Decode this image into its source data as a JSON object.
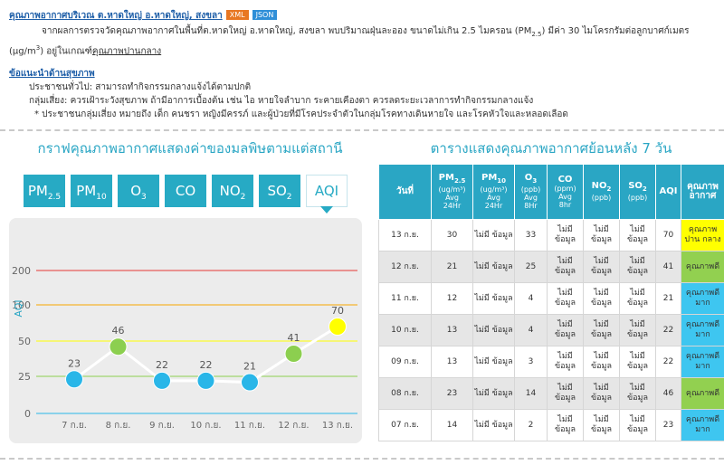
{
  "header": {
    "title": "คุณภาพอากาศบริเวณ ต.หาดใหญ่ อ.หาดใหญ่, สงขลา",
    "xml_label": "XML",
    "json_label": "JSON",
    "text_before": "จากผลการตรวจวัดคุณภาพอากาศในพื้นที่ต.หาดใหญ่ อ.หาดใหญ่, สงขลา พบปริมาณฝุ่นละออง ขนาดไม่เกิน 2.5 ไมครอน (PM",
    "pm_sub": "2.5",
    "text_mid": ") มีค่า 30 ไมโครกรัมต่อลูกบาศก์เมตร (µg/m",
    "unit_sup": "3",
    "text_after": ") อยู่ในเกณฑ์",
    "quality_link": "คุณภาพปานกลาง"
  },
  "advice": {
    "heading": "ข้อแนะนำด้านสุขภาพ",
    "general": "ประชาชนทั่วไป: สามารถทำกิจกรรมกลางแจ้งได้ตามปกติ",
    "risk": "กลุ่มเสี่ยง: ควรเฝ้าระวังสุขภาพ ถ้ามีอาการเบื้องต้น เช่น ไอ หายใจลำบาก ระคายเคืองตา ควรลดระยะเวลาการทำกิจกรรมกลางแจ้ง",
    "note": "* ประชาชนกลุ่มเสี่ยง หมายถึง เด็ก คนชรา หญิงมีครรภ์ และผู้ป่วยที่มีโรคประจำตัวในกลุ่มโรคทางเดินหายใจ และโรคหัวใจและหลอดเลือด"
  },
  "left_panel": {
    "title": "กราฟคุณภาพอากาศแสดงค่าของมลพิษตามแต่สถานี",
    "tabs": [
      {
        "base": "PM",
        "sub": "2.5",
        "active": false
      },
      {
        "base": "PM",
        "sub": "10",
        "active": false
      },
      {
        "base": "O",
        "sub": "3",
        "active": false
      },
      {
        "base": "CO",
        "sub": "",
        "active": false
      },
      {
        "base": "NO",
        "sub": "2",
        "active": false
      },
      {
        "base": "SO",
        "sub": "2",
        "active": false
      },
      {
        "base": "AQI",
        "sub": "",
        "active": true
      }
    ]
  },
  "chart_data": {
    "type": "line",
    "ylabel": "AQI",
    "xlabel": "",
    "y_ticks": [
      0,
      25,
      50,
      100,
      200
    ],
    "y_scale": "piecewise",
    "categories": [
      "7 ก.ย.",
      "8 ก.ย.",
      "9 ก.ย.",
      "10 ก.ย.",
      "11 ก.ย.",
      "12 ก.ย.",
      "13 ก.ย."
    ],
    "values": [
      23,
      46,
      22,
      22,
      21,
      41,
      70
    ],
    "point_colors": [
      "#29b6e8",
      "#8ccf4f",
      "#29b6e8",
      "#29b6e8",
      "#29b6e8",
      "#8ccf4f",
      "#ffff00"
    ],
    "band_colors": {
      "0": "#29b6e8",
      "25": "#8ccf4f",
      "50": "#ffff00",
      "100": "#f7a600",
      "200": "#e53935"
    },
    "grid": true,
    "legend": "none"
  },
  "right_panel": {
    "title": "ตารางแสดงคุณภาพอากาศย้อนหลัง 7 วัน",
    "headers": {
      "date": "วันที่",
      "pm25": {
        "base": "PM",
        "sub": "2.5",
        "unit": "(ug/m³)",
        "avg": "Avg",
        "period": "24Hr"
      },
      "pm10": {
        "base": "PM",
        "sub": "10",
        "unit": "(ug/m³)",
        "avg": "Avg",
        "period": "24Hr"
      },
      "o3": {
        "base": "O",
        "sub": "3",
        "unit": "(ppb)",
        "avg": "Avg",
        "period": "8Hr"
      },
      "co": {
        "base": "CO",
        "unit": "(ppm)",
        "avg": "Avg",
        "period": "8hr"
      },
      "no2": {
        "base": "NO",
        "sub": "2",
        "unit": "(ppb)"
      },
      "so2": {
        "base": "SO",
        "sub": "2",
        "unit": "(ppb)"
      },
      "aqi": "AQI",
      "quality": "คุณภาพอากาศ"
    },
    "rows": [
      {
        "date": "13 ก.ย.",
        "pm25": "30",
        "pm10": "ไม่มี ข้อมูล",
        "o3": "33",
        "co": "ไม่มี ข้อมูล",
        "no2": "ไม่มี ข้อมูล",
        "so2": "ไม่มี ข้อมูล",
        "aqi": "70",
        "quality": "คุณภาพปาน กลาง",
        "level": "moderate"
      },
      {
        "date": "12 ก.ย.",
        "pm25": "21",
        "pm10": "ไม่มี ข้อมูล",
        "o3": "25",
        "co": "ไม่มี ข้อมูล",
        "no2": "ไม่มี ข้อมูล",
        "so2": "ไม่มี ข้อมูล",
        "aqi": "41",
        "quality": "คุณภาพดี",
        "level": "good"
      },
      {
        "date": "11 ก.ย.",
        "pm25": "12",
        "pm10": "ไม่มี ข้อมูล",
        "o3": "4",
        "co": "ไม่มี ข้อมูล",
        "no2": "ไม่มี ข้อมูล",
        "so2": "ไม่มี ข้อมูล",
        "aqi": "21",
        "quality": "คุณภาพดีมาก",
        "level": "verygood"
      },
      {
        "date": "10 ก.ย.",
        "pm25": "13",
        "pm10": "ไม่มี ข้อมูล",
        "o3": "4",
        "co": "ไม่มี ข้อมูล",
        "no2": "ไม่มี ข้อมูล",
        "so2": "ไม่มี ข้อมูล",
        "aqi": "22",
        "quality": "คุณภาพดีมาก",
        "level": "verygood"
      },
      {
        "date": "09 ก.ย.",
        "pm25": "13",
        "pm10": "ไม่มี ข้อมูล",
        "o3": "3",
        "co": "ไม่มี ข้อมูล",
        "no2": "ไม่มี ข้อมูล",
        "so2": "ไม่มี ข้อมูล",
        "aqi": "22",
        "quality": "คุณภาพดีมาก",
        "level": "verygood"
      },
      {
        "date": "08 ก.ย.",
        "pm25": "23",
        "pm10": "ไม่มี ข้อมูล",
        "o3": "14",
        "co": "ไม่มี ข้อมูล",
        "no2": "ไม่มี ข้อมูล",
        "so2": "ไม่มี ข้อมูล",
        "aqi": "46",
        "quality": "คุณภาพดี",
        "level": "good"
      },
      {
        "date": "07 ก.ย.",
        "pm25": "14",
        "pm10": "ไม่มี ข้อมูล",
        "o3": "2",
        "co": "ไม่มี ข้อมูล",
        "no2": "ไม่มี ข้อมูล",
        "so2": "ไม่มี ข้อมูล",
        "aqi": "23",
        "quality": "คุณภาพดีมาก",
        "level": "verygood"
      }
    ]
  }
}
